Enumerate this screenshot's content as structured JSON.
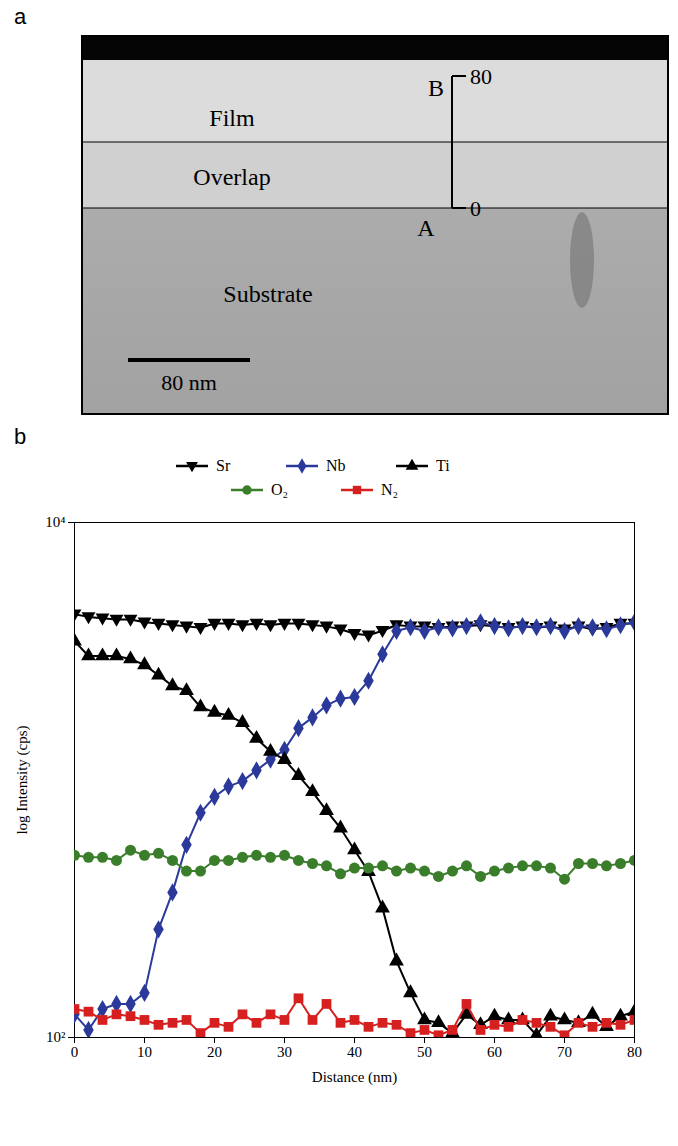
{
  "figure_a": {
    "panel_label": "a",
    "regions": {
      "film": "Film",
      "overlap": "Overlap",
      "substrate": "Substrate"
    },
    "points": {
      "top": "B",
      "bottom": "A"
    },
    "ruler": {
      "top": 80,
      "bottom": 0
    },
    "scale_bar": "80 nm"
  },
  "chart_data": {
    "panel_label": "b",
    "type": "line",
    "log": "y",
    "xlabel": "Distance (nm)",
    "ylabel": "log Intensity (cps)",
    "x": [
      0,
      2,
      4,
      6,
      8,
      10,
      12,
      14,
      16,
      18,
      20,
      22,
      24,
      26,
      28,
      30,
      32,
      34,
      36,
      38,
      40,
      42,
      44,
      46,
      48,
      50,
      52,
      54,
      56,
      58,
      60,
      62,
      64,
      66,
      68,
      70,
      72,
      74,
      76,
      78,
      80
    ],
    "xlim": [
      0,
      80
    ],
    "xticks": [
      0,
      10,
      20,
      30,
      40,
      50,
      60,
      70,
      80
    ],
    "ylim": [
      100,
      10000
    ],
    "yticks": [
      {
        "value": 100,
        "label": "10²"
      },
      {
        "value": 10000,
        "label": "10⁴"
      }
    ],
    "legend": "top",
    "series": [
      {
        "name": "Sr",
        "color": "#000000",
        "marker": "triangle_down",
        "values": [
          4400,
          4300,
          4250,
          4200,
          4200,
          4100,
          4050,
          4000,
          3950,
          3900,
          4050,
          4050,
          4000,
          4050,
          4000,
          4050,
          4050,
          4000,
          3950,
          3850,
          3700,
          3650,
          3800,
          4000,
          3950,
          3950,
          3900,
          3950,
          3950,
          4000,
          3950,
          3900,
          3950,
          3900,
          3950,
          3850,
          3950,
          3850,
          3900,
          4050,
          4050
        ]
      },
      {
        "name": "Nb",
        "color": "#2b3a9a",
        "marker": "diamond",
        "values": [
          123,
          107,
          129,
          135,
          135,
          149,
          263,
          366,
          560,
          746,
          860,
          945,
          990,
          1090,
          1200,
          1310,
          1590,
          1750,
          1950,
          2070,
          2100,
          2430,
          3080,
          3790,
          3920,
          3790,
          3920,
          3880,
          3960,
          4100,
          3960,
          3880,
          3960,
          3920,
          3960,
          3790,
          3960,
          3920,
          3850,
          3990,
          4100
        ]
      },
      {
        "name": "Ti",
        "color": "#000000",
        "marker": "triangle",
        "values": [
          3460,
          3030,
          3030,
          3030,
          2950,
          2800,
          2550,
          2320,
          2220,
          1920,
          1830,
          1780,
          1670,
          1450,
          1290,
          1200,
          1040,
          900,
          760,
          650,
          535,
          440,
          318,
          198,
          149,
          117,
          114,
          104,
          123,
          112,
          121,
          117,
          117,
          102,
          121,
          117,
          114,
          123,
          110,
          121,
          126
        ]
      },
      {
        "name": "O₂",
        "color": "#3a7d2a",
        "marker": "circle",
        "values": [
          510,
          501,
          501,
          487,
          534,
          510,
          519,
          487,
          443,
          443,
          487,
          487,
          501,
          510,
          501,
          510,
          487,
          474,
          464,
          432,
          455,
          455,
          464,
          443,
          455,
          443,
          422,
          443,
          464,
          422,
          443,
          455,
          464,
          464,
          455,
          412,
          474,
          474,
          464,
          474,
          487
        ]
      },
      {
        "name": "N₂",
        "color": "#d62020",
        "marker": "square",
        "values": [
          129,
          126,
          117,
          123,
          121,
          117,
          112,
          114,
          117,
          104,
          114,
          110,
          123,
          114,
          123,
          117,
          142,
          117,
          135,
          114,
          117,
          110,
          114,
          112,
          104,
          107,
          102,
          107,
          135,
          107,
          112,
          110,
          117,
          114,
          110,
          102,
          114,
          110,
          114,
          112,
          117
        ]
      }
    ]
  }
}
